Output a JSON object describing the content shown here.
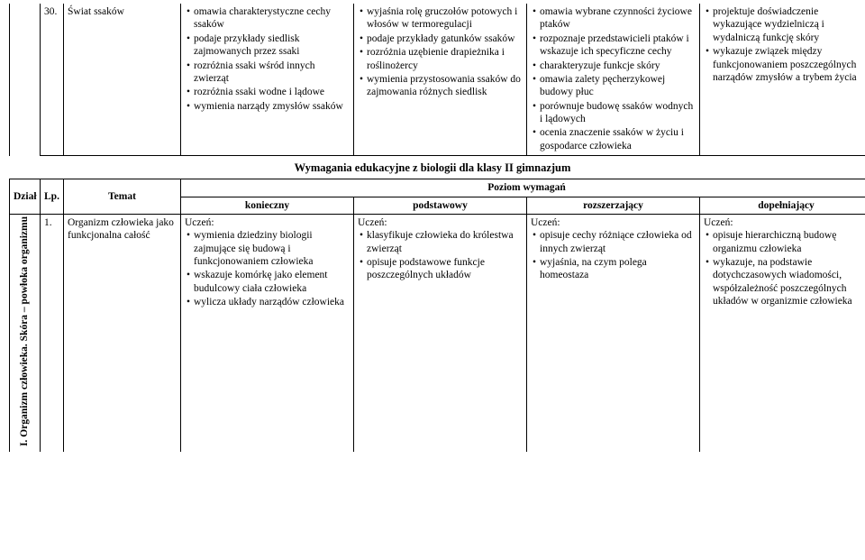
{
  "top": {
    "lp": "30.",
    "topic": "Świat ssaków",
    "col3": [
      "omawia charakterystyczne cechy ssaków",
      "podaje przykłady siedlisk zajmowanych przez ssaki",
      "rozróżnia ssaki wśród innych zwierząt",
      "rozróżnia ssaki wodne i lądowe",
      "wymienia narządy zmysłów ssaków"
    ],
    "col4": [
      "wyjaśnia rolę gruczołów potowych i włosów w termoregulacji",
      "podaje przykłady gatunków ssaków",
      "rozróżnia uzębienie drapieżnika i roślinożercy",
      "wymienia przystosowania ssaków do zajmowania różnych siedlisk"
    ],
    "col5": [
      "omawia wybrane czynności życiowe ptaków",
      "rozpoznaje przedstawicieli ptaków i wskazuje ich specyficzne cechy",
      "charakteryzuje funkcje skóry",
      "omawia zalety pęcherzykowej budowy płuc",
      "porównuje budowę ssaków wodnych i lądowych",
      "ocenia znaczenie ssaków w życiu i gospodarce człowieka"
    ],
    "col6": [
      "projektuje doświadczenie wykazujące wydzielniczą i wydalniczą funkcję skóry",
      "wykazuje związek między funkcjonowaniem poszczególnych narządów zmysłów a trybem życia"
    ]
  },
  "section_title": "Wymagania edukacyjne z biologii dla klasy II gimnazjum",
  "headers": {
    "dzial": "Dział",
    "lp": "Lp.",
    "temat": "Temat",
    "poziom": "Poziom wymagań",
    "konieczny": "konieczny",
    "podstawowy": "podstawowy",
    "rozszerzajacy": "rozszerzający",
    "dopelniajacy": "dopełniający"
  },
  "row1": {
    "dzial_vertical": "I. Organizm człowieka.\nSkóra – powłoka\norganizmu",
    "lp": "1.",
    "temat": "Organizm człowieka jako funkcjonalna całość",
    "konieczny_lead": "Uczeń:",
    "konieczny": [
      "wymienia dziedziny biologii zajmujące się budową i funkcjonowaniem człowieka",
      "wskazuje komórkę jako element budulcowy ciała człowieka",
      "wylicza układy narządów człowieka"
    ],
    "podstawowy_lead": "Uczeń:",
    "podstawowy": [
      "klasyfikuje człowieka do królestwa zwierząt",
      "opisuje podstawowe funkcje poszczególnych układów"
    ],
    "rozszerzajacy_lead": "Uczeń:",
    "rozszerzajacy": [
      "opisuje cechy różniące człowieka od innych zwierząt",
      "wyjaśnia, na czym polega homeostaza"
    ],
    "dopelniajacy_lead": "Uczeń:",
    "dopelniajacy": [
      "opisuje hierarchiczną budowę organizmu człowieka",
      "wykazuje, na podstawie dotychczasowych wiadomości, współzależność poszczególnych układów w organizmie człowieka"
    ]
  }
}
